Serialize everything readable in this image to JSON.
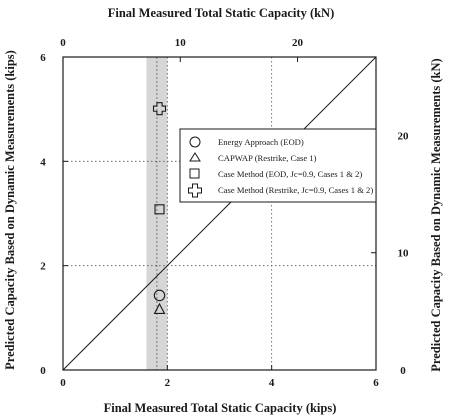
{
  "chart_data": {
    "type": "scatter",
    "title": "",
    "xlabel": "Final Measured Total Static Capacity (kips)",
    "ylabel": "Predicted Capacity Based on Dynamic Measurements (kips)",
    "x2label": "Final Measured Total Static Capacity (kN)",
    "y2label": "Predicted Capacity Based on Dynamic Measurements (kN)",
    "xlim": [
      0,
      6
    ],
    "ylim": [
      0,
      6
    ],
    "x2lim": [
      0,
      26.69
    ],
    "y2lim": [
      0,
      26.69
    ],
    "xticks": [
      "0",
      "2",
      "4",
      "6"
    ],
    "yticks": [
      "0",
      "2",
      "4",
      "6"
    ],
    "x2ticks": [
      {
        "label": "0",
        "value": 0
      },
      {
        "label": "10",
        "value": 10
      },
      {
        "label": "20",
        "value": 20
      }
    ],
    "y2ticks": [
      {
        "label": "0",
        "value": 0
      },
      {
        "label": "10",
        "value": 10
      },
      {
        "label": "20",
        "value": 20
      }
    ],
    "grid": "dotted at x=2,4 and y=2,4",
    "reference_line": {
      "type": "line of equality",
      "from": [
        0,
        0
      ],
      "to": [
        6,
        6
      ]
    },
    "shaded_band": {
      "x_from": 1.6,
      "x_to": 2.0,
      "x_center": 1.8
    },
    "legend_position": "upper-right",
    "series": [
      {
        "name": "Energy Approach (EOD)",
        "marker": "circle",
        "points": [
          {
            "x": 1.85,
            "y": 1.43
          }
        ]
      },
      {
        "name": "CAPWAP (Restrike, Case 1)",
        "marker": "triangle",
        "points": [
          {
            "x": 1.85,
            "y": 1.16
          }
        ]
      },
      {
        "name": "Case Method (EOD, Jc=0.9, Cases 1 & 2)",
        "marker": "square",
        "points": [
          {
            "x": 1.85,
            "y": 3.08
          }
        ]
      },
      {
        "name": "Case Method (Restrike, Jc=0.9, Cases 1 & 2)",
        "marker": "cross",
        "points": [
          {
            "x": 1.85,
            "y": 5.01
          }
        ]
      }
    ]
  }
}
